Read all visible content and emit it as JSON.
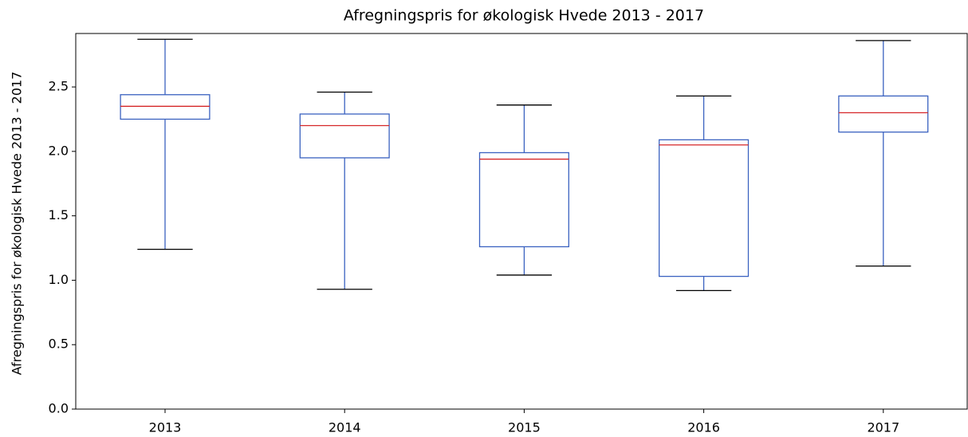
{
  "chart_data": {
    "type": "box",
    "title": "Afregningspris for økologisk Hvede 2013 - 2017",
    "y_label": "Afregningspris for økologisk Hvede 2013 - 2017",
    "categories": [
      "2013",
      "2014",
      "2015",
      "2016",
      "2017"
    ],
    "boxes": [
      {
        "min": 1.24,
        "q1": 2.25,
        "median": 2.35,
        "q3": 2.44,
        "max": 2.87
      },
      {
        "min": 0.93,
        "q1": 1.95,
        "median": 2.2,
        "q3": 2.29,
        "max": 2.46
      },
      {
        "min": 1.04,
        "q1": 1.26,
        "median": 1.94,
        "q3": 1.99,
        "max": 2.36
      },
      {
        "min": 0.92,
        "q1": 1.03,
        "median": 2.05,
        "q3": 2.09,
        "max": 2.43
      },
      {
        "min": 1.11,
        "q1": 2.15,
        "median": 2.3,
        "q3": 2.43,
        "max": 2.86
      }
    ],
    "box_color": "#3b62c0",
    "median_color": "#d62728",
    "cap_color": "#000000",
    "ylim": [
      0,
      2.915
    ],
    "yticks": [
      {
        "value": 0,
        "label": "0.0"
      },
      0.5,
      {
        "value": 1,
        "label": "1.0"
      },
      1.5,
      {
        "value": 2,
        "label": "2.0"
      },
      2.5
    ],
    "grid": false
  }
}
